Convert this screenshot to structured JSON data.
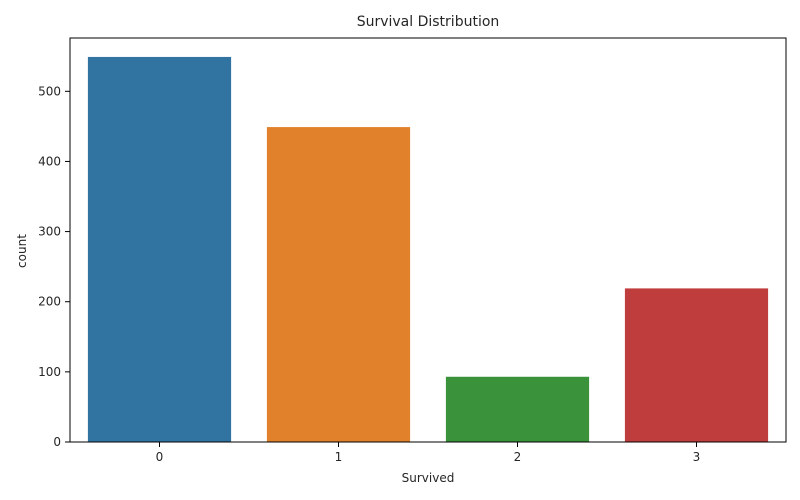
{
  "chart_data": {
    "type": "bar",
    "title": "Survival Distribution",
    "xlabel": "Survived",
    "ylabel": "count",
    "categories": [
      "0",
      "1",
      "2",
      "3"
    ],
    "values": [
      549,
      449,
      93,
      219
    ],
    "colors": [
      "#3274a1",
      "#e1812c",
      "#3a923a",
      "#c03d3e"
    ],
    "ylim": [
      0,
      576
    ],
    "yticks": [
      0,
      100,
      200,
      300,
      400,
      500
    ],
    "grid": false,
    "legend": "none"
  }
}
